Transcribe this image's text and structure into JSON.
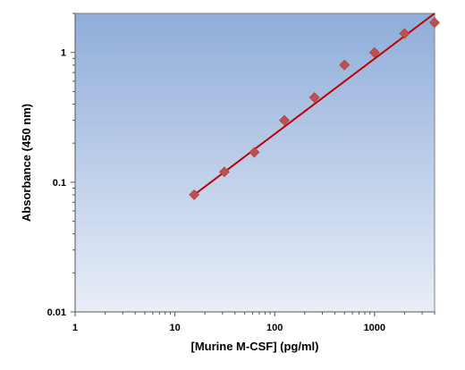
{
  "chart_data": {
    "type": "scatter",
    "title": "",
    "xlabel": "[Murine M-CSF] (pg/ml)",
    "ylabel": "Absorbance (450 nm)",
    "xscale": "log",
    "yscale": "log",
    "xlim": [
      1,
      4000
    ],
    "ylim": [
      0.01,
      2.0
    ],
    "x_ticks": [
      {
        "value": 1,
        "label": "1"
      },
      {
        "value": 10,
        "label": "10"
      },
      {
        "value": 100,
        "label": "100"
      },
      {
        "value": 1000,
        "label": "1000"
      }
    ],
    "y_ticks": [
      {
        "value": 0.01,
        "label": "0.01"
      },
      {
        "value": 0.1,
        "label": "0.1"
      },
      {
        "value": 1,
        "label": "1"
      }
    ],
    "grid": false,
    "legend": "none",
    "background_gradient": [
      "#8fadd9",
      "#e9eef8"
    ],
    "marker_color": "#c0504d",
    "line_color": "#c00000",
    "series": [
      {
        "points": [
          {
            "x": 15.6,
            "y": 0.08
          },
          {
            "x": 31.3,
            "y": 0.12
          },
          {
            "x": 62.5,
            "y": 0.17
          },
          {
            "x": 125,
            "y": 0.3
          },
          {
            "x": 250,
            "y": 0.45
          },
          {
            "x": 500,
            "y": 0.8
          },
          {
            "x": 1000,
            "y": 1.0
          },
          {
            "x": 2000,
            "y": 1.4
          },
          {
            "x": 4000,
            "y": 1.7
          }
        ]
      }
    ],
    "fit_line": {
      "x_start": 15.6,
      "y_start": 0.08,
      "x_end": 4000,
      "y_end": 2.0
    }
  }
}
